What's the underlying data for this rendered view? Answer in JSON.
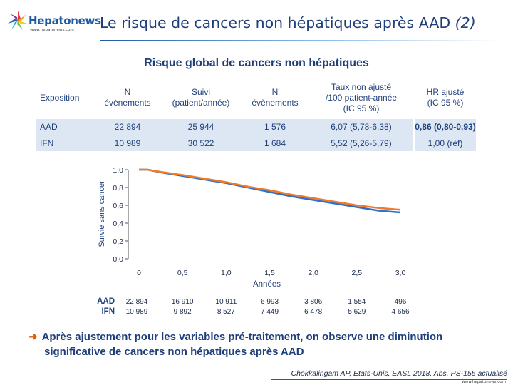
{
  "header": {
    "logo_name": "Hepatonews",
    "logo_url": "www.hepatonews.com",
    "title_main": "Le risque de cancers non hépatiques après AAD",
    "title_suffix": "(2)"
  },
  "subtitle": "Risque global de cancers non hépatiques",
  "table": {
    "headers": {
      "exposition": "Exposition",
      "n_events_1a": "N",
      "n_events_1b": "évènements",
      "followup_a": "Suivi",
      "followup_b": "(patient/année)",
      "n_events_2a": "N",
      "n_events_2b": "évènements",
      "rate_a": "Taux non ajusté",
      "rate_b": "/100 patient-année",
      "rate_c": "(IC 95 %)",
      "hr_a": "HR ajusté",
      "hr_b": "(IC 95 %)"
    },
    "rows": [
      {
        "exposition": "AAD",
        "n_events_1": "22 894",
        "followup": "25 944",
        "n_events_2": "1 576",
        "rate": "6,07 (5,78-6,38)",
        "hr": "0,86 (0,80-0,93)"
      },
      {
        "exposition": "IFN",
        "n_events_1": "10 989",
        "followup": "30 522",
        "n_events_2": "1 684",
        "rate": "5,52 (5,26-5,79)",
        "hr": "1,00 (réf)"
      }
    ]
  },
  "chart_data": {
    "type": "line",
    "title": "",
    "xlabel": "Années",
    "ylabel": "Survie sans cancer",
    "xlim": [
      0,
      3.0
    ],
    "ylim": [
      0,
      1.0
    ],
    "x_ticks": [
      "0",
      "0,5",
      "1,0",
      "1,5",
      "2,0",
      "2,5",
      "3,0"
    ],
    "y_ticks": [
      "0,0",
      "0,2",
      "0,4",
      "0,6",
      "0,8",
      "1,0"
    ],
    "series": [
      {
        "name": "AAD",
        "color": "#2f6fd0",
        "x": [
          0,
          0.1,
          0.25,
          0.5,
          0.75,
          1.0,
          1.25,
          1.5,
          1.75,
          2.0,
          2.25,
          2.5,
          2.75,
          3.0
        ],
        "y": [
          1.0,
          1.0,
          0.97,
          0.93,
          0.89,
          0.85,
          0.8,
          0.75,
          0.7,
          0.66,
          0.62,
          0.58,
          0.54,
          0.52
        ]
      },
      {
        "name": "IFN",
        "color": "#f07a28",
        "x": [
          0,
          0.1,
          0.25,
          0.5,
          0.75,
          1.0,
          1.25,
          1.5,
          1.75,
          2.0,
          2.25,
          2.5,
          2.75,
          3.0
        ],
        "y": [
          1.0,
          1.0,
          0.975,
          0.94,
          0.9,
          0.86,
          0.81,
          0.77,
          0.72,
          0.68,
          0.64,
          0.6,
          0.57,
          0.55
        ]
      }
    ],
    "at_risk": {
      "labels": [
        "AAD",
        "IFN"
      ],
      "AAD": [
        "22 894",
        "16 910",
        "10 911",
        "6 993",
        "3 806",
        "1 554",
        "496"
      ],
      "IFN": [
        "10 989",
        "9 892",
        "8 527",
        "7 449",
        "6 478",
        "5 629",
        "4 656"
      ]
    }
  },
  "conclusion": {
    "line1": "Après ajustement pour les variables pré-traitement, on observe une diminution",
    "line2": "significative de cancers non hépatiques après AAD"
  },
  "citation": "Chokkalingam AP, Etats-Unis, EASL 2018, Abs. PS-155 actualisé",
  "footer_url": "www.hepatonews.com"
}
